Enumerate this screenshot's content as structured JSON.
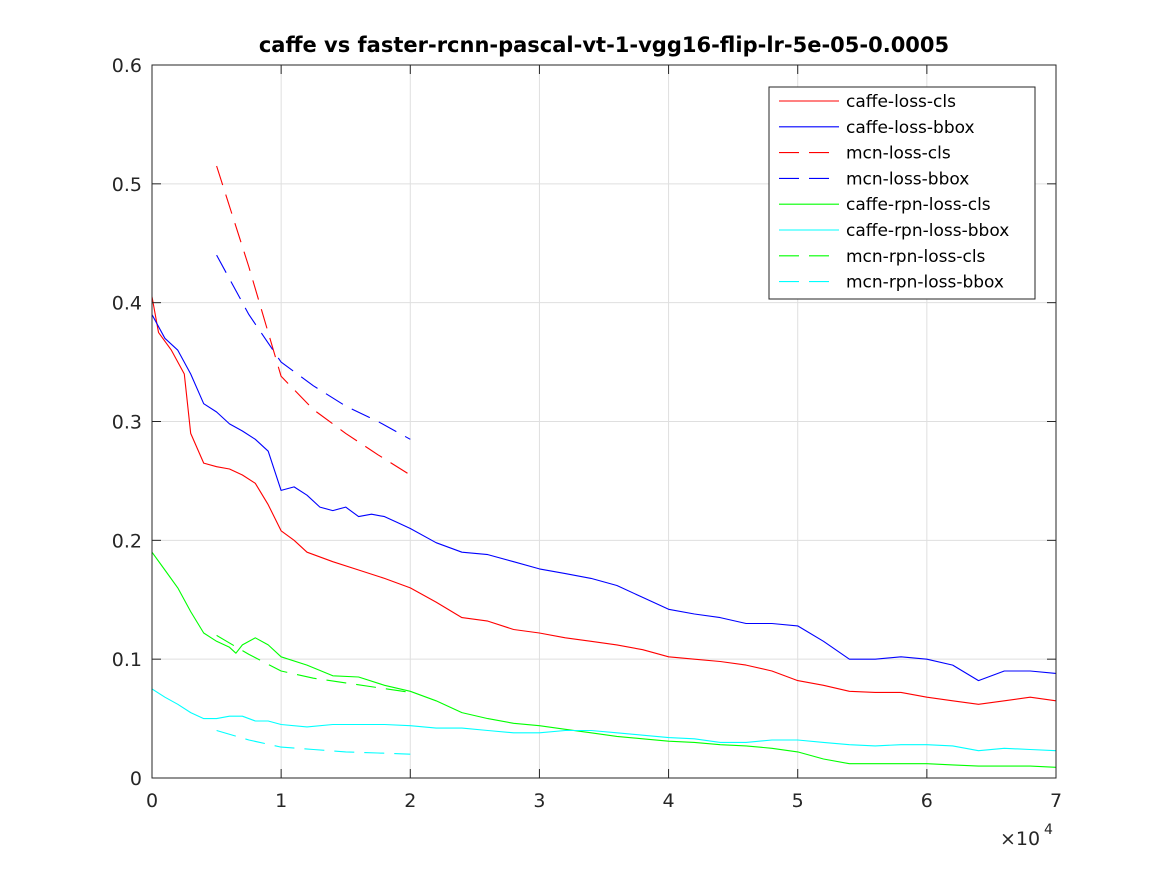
{
  "chart_data": {
    "type": "line",
    "title": "caffe vs faster-rcnn-pascal-vt-1-vgg16-flip-lr-5e-05-0.0005",
    "xlabel": "",
    "ylabel": "",
    "xlim": [
      0,
      70000
    ],
    "ylim": [
      0,
      0.6
    ],
    "x_ticks": [
      0,
      10000,
      20000,
      30000,
      40000,
      50000,
      60000,
      70000
    ],
    "x_tick_labels": [
      "0",
      "1",
      "2",
      "3",
      "4",
      "5",
      "6",
      "7"
    ],
    "x_exponent_label": "×10",
    "x_exponent_power": "4",
    "y_ticks": [
      0,
      0.1,
      0.2,
      0.3,
      0.4,
      0.5,
      0.6
    ],
    "y_tick_labels": [
      "0",
      "0.1",
      "0.2",
      "0.3",
      "0.4",
      "0.5",
      "0.6"
    ],
    "grid": true,
    "legend_position": "top-right",
    "series": [
      {
        "name": "caffe-loss-cls",
        "color": "#ff0000",
        "dash": "solid",
        "x": [
          0,
          500,
          1500,
          2500,
          3000,
          4000,
          5000,
          6000,
          7000,
          8000,
          9000,
          10000,
          11000,
          12000,
          14000,
          16000,
          18000,
          20000,
          22000,
          24000,
          26000,
          28000,
          30000,
          32000,
          34000,
          36000,
          38000,
          40000,
          42000,
          44000,
          46000,
          48000,
          50000,
          52000,
          54000,
          56000,
          58000,
          60000,
          62000,
          64000,
          66000,
          68000,
          70000
        ],
        "y": [
          0.405,
          0.375,
          0.36,
          0.34,
          0.29,
          0.265,
          0.262,
          0.26,
          0.255,
          0.248,
          0.23,
          0.208,
          0.2,
          0.19,
          0.182,
          0.175,
          0.168,
          0.16,
          0.148,
          0.135,
          0.132,
          0.125,
          0.122,
          0.118,
          0.115,
          0.112,
          0.108,
          0.102,
          0.1,
          0.098,
          0.095,
          0.09,
          0.082,
          0.078,
          0.073,
          0.072,
          0.072,
          0.068,
          0.065,
          0.062,
          0.065,
          0.068,
          0.065
        ]
      },
      {
        "name": "caffe-loss-bbox",
        "color": "#0000ff",
        "dash": "solid",
        "x": [
          0,
          1000,
          2000,
          3000,
          4000,
          5000,
          6000,
          7000,
          8000,
          9000,
          10000,
          11000,
          12000,
          13000,
          14000,
          15000,
          16000,
          17000,
          18000,
          19000,
          20000,
          22000,
          24000,
          26000,
          28000,
          30000,
          32000,
          34000,
          36000,
          38000,
          40000,
          42000,
          44000,
          46000,
          48000,
          50000,
          52000,
          54000,
          56000,
          58000,
          60000,
          62000,
          64000,
          66000,
          68000,
          70000
        ],
        "y": [
          0.39,
          0.37,
          0.36,
          0.34,
          0.315,
          0.308,
          0.298,
          0.292,
          0.285,
          0.275,
          0.242,
          0.245,
          0.238,
          0.228,
          0.225,
          0.228,
          0.22,
          0.222,
          0.22,
          0.215,
          0.21,
          0.198,
          0.19,
          0.188,
          0.182,
          0.176,
          0.172,
          0.168,
          0.162,
          0.152,
          0.142,
          0.138,
          0.135,
          0.13,
          0.13,
          0.128,
          0.115,
          0.1,
          0.1,
          0.102,
          0.1,
          0.095,
          0.082,
          0.09,
          0.09,
          0.088
        ]
      },
      {
        "name": "mcn-loss-cls",
        "color": "#ff0000",
        "dash": "dashed",
        "x": [
          5000,
          7500,
          10000,
          12500,
          15000,
          17500,
          20000
        ],
        "y": [
          0.515,
          0.43,
          0.338,
          0.31,
          0.29,
          0.272,
          0.255
        ]
      },
      {
        "name": "mcn-loss-bbox",
        "color": "#0000ff",
        "dash": "dashed",
        "x": [
          5000,
          7500,
          10000,
          12500,
          15000,
          17500,
          20000
        ],
        "y": [
          0.44,
          0.39,
          0.35,
          0.33,
          0.313,
          0.3,
          0.285
        ]
      },
      {
        "name": "caffe-rpn-loss-cls",
        "color": "#00ff00",
        "dash": "solid",
        "x": [
          0,
          1000,
          2000,
          3000,
          4000,
          5000,
          6000,
          6500,
          7000,
          8000,
          9000,
          10000,
          12000,
          14000,
          16000,
          18000,
          20000,
          22000,
          24000,
          26000,
          28000,
          30000,
          32000,
          34000,
          36000,
          38000,
          40000,
          42000,
          44000,
          46000,
          48000,
          50000,
          52000,
          54000,
          56000,
          58000,
          60000,
          62000,
          64000,
          66000,
          68000,
          70000
        ],
        "y": [
          0.19,
          0.175,
          0.16,
          0.14,
          0.122,
          0.115,
          0.11,
          0.105,
          0.112,
          0.118,
          0.112,
          0.102,
          0.095,
          0.086,
          0.085,
          0.078,
          0.073,
          0.065,
          0.055,
          0.05,
          0.046,
          0.044,
          0.041,
          0.038,
          0.035,
          0.033,
          0.031,
          0.03,
          0.028,
          0.027,
          0.025,
          0.022,
          0.016,
          0.012,
          0.012,
          0.012,
          0.012,
          0.011,
          0.01,
          0.01,
          0.01,
          0.009
        ]
      },
      {
        "name": "caffe-rpn-loss-bbox",
        "color": "#00ffff",
        "dash": "solid",
        "x": [
          0,
          1000,
          2000,
          3000,
          4000,
          5000,
          6000,
          7000,
          8000,
          9000,
          10000,
          12000,
          14000,
          16000,
          18000,
          20000,
          22000,
          24000,
          26000,
          28000,
          30000,
          32000,
          34000,
          36000,
          38000,
          40000,
          42000,
          44000,
          46000,
          48000,
          50000,
          52000,
          54000,
          56000,
          58000,
          60000,
          62000,
          64000,
          66000,
          68000,
          70000
        ],
        "y": [
          0.075,
          0.068,
          0.062,
          0.055,
          0.05,
          0.05,
          0.052,
          0.052,
          0.048,
          0.048,
          0.045,
          0.043,
          0.045,
          0.045,
          0.045,
          0.044,
          0.042,
          0.042,
          0.04,
          0.038,
          0.038,
          0.04,
          0.04,
          0.038,
          0.036,
          0.034,
          0.033,
          0.03,
          0.03,
          0.032,
          0.032,
          0.03,
          0.028,
          0.027,
          0.028,
          0.028,
          0.027,
          0.023,
          0.025,
          0.024,
          0.023
        ]
      },
      {
        "name": "mcn-rpn-loss-cls",
        "color": "#00ff00",
        "dash": "dashed",
        "x": [
          5000,
          7500,
          10000,
          12500,
          15000,
          17500,
          20000
        ],
        "y": [
          0.12,
          0.104,
          0.09,
          0.084,
          0.08,
          0.076,
          0.072
        ]
      },
      {
        "name": "mcn-rpn-loss-bbox",
        "color": "#00ffff",
        "dash": "dashed",
        "x": [
          5000,
          7500,
          10000,
          12500,
          15000,
          17500,
          20000
        ],
        "y": [
          0.04,
          0.032,
          0.026,
          0.024,
          0.022,
          0.021,
          0.02
        ]
      }
    ]
  }
}
